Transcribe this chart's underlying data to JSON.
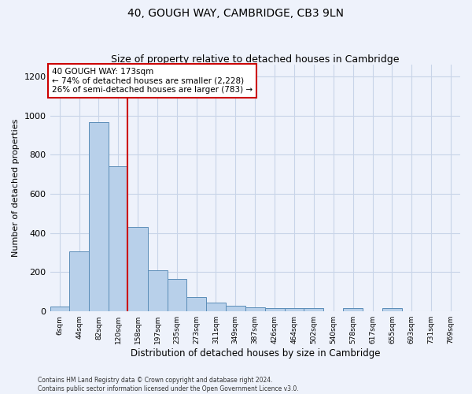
{
  "title": "40, GOUGH WAY, CAMBRIDGE, CB3 9LN",
  "subtitle": "Size of property relative to detached houses in Cambridge",
  "xlabel": "Distribution of detached houses by size in Cambridge",
  "ylabel": "Number of detached properties",
  "categories": [
    "6sqm",
    "44sqm",
    "82sqm",
    "120sqm",
    "158sqm",
    "197sqm",
    "235sqm",
    "273sqm",
    "311sqm",
    "349sqm",
    "387sqm",
    "426sqm",
    "464sqm",
    "502sqm",
    "540sqm",
    "578sqm",
    "617sqm",
    "655sqm",
    "693sqm",
    "731sqm",
    "769sqm"
  ],
  "bin_edges": [
    6,
    44,
    82,
    120,
    158,
    197,
    235,
    273,
    311,
    349,
    387,
    426,
    464,
    502,
    540,
    578,
    617,
    655,
    693,
    731,
    769,
    807
  ],
  "bin_values": [
    25,
    305,
    965,
    740,
    430,
    210,
    165,
    75,
    47,
    30,
    20,
    15,
    15,
    15,
    0,
    15,
    0,
    15,
    0,
    0,
    0
  ],
  "bar_color": "#b8d0ea",
  "bar_edge_color": "#5b8db8",
  "vline_x": 158,
  "vline_color": "#cc0000",
  "annotation_text": "40 GOUGH WAY: 173sqm\n← 74% of detached houses are smaller (2,228)\n26% of semi-detached houses are larger (783) →",
  "annotation_box_facecolor": "#ffffff",
  "annotation_box_edgecolor": "#cc0000",
  "ylim": [
    0,
    1260
  ],
  "xlim_min": 6,
  "xlim_max": 807,
  "grid_color": "#c8d4e8",
  "footer_line1": "Contains HM Land Registry data © Crown copyright and database right 2024.",
  "footer_line2": "Contains public sector information licensed under the Open Government Licence v3.0.",
  "background_color": "#eef2fb",
  "plot_bg_color": "#eef2fb",
  "title_fontsize": 10,
  "subtitle_fontsize": 9,
  "ylabel_fontsize": 8,
  "xlabel_fontsize": 8.5,
  "tick_fontsize": 6.5,
  "annotation_fontsize": 7.5,
  "footer_fontsize": 5.5
}
